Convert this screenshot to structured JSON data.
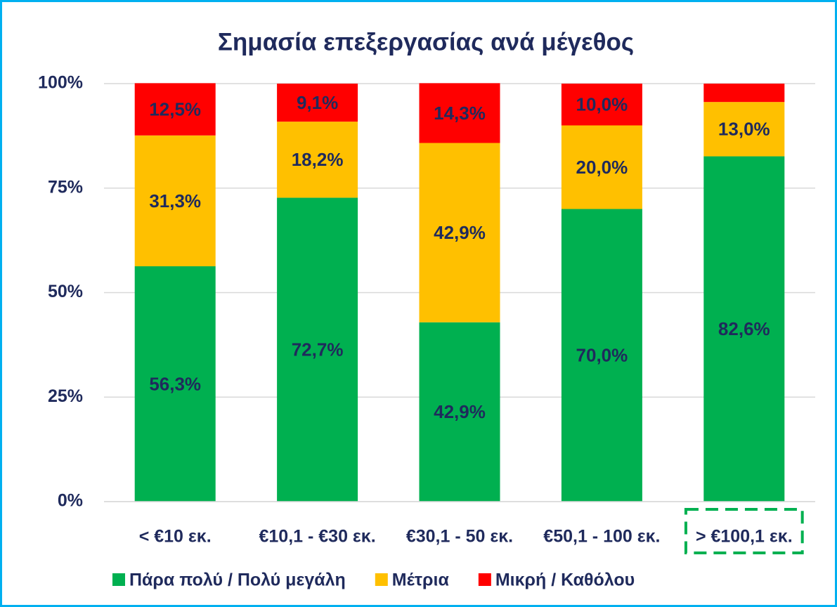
{
  "chart_data": {
    "type": "stacked_bar",
    "title": "Σημασία επεξεργασίας ανά μέγεθος",
    "categories": [
      "< €10 εκ.",
      "€10,1 - €30 εκ.",
      "€30,1 - 50 εκ.",
      "€50,1 - 100 εκ.",
      "> €100,1 εκ."
    ],
    "series": [
      {
        "name": "Πάρα πολύ / Πολύ μεγάλη",
        "color": "#00b050",
        "values": [
          56.3,
          72.7,
          42.9,
          70.0,
          82.6
        ],
        "value_labels": [
          "56,3%",
          "72,7%",
          "42,9%",
          "70,0%",
          "82,6%"
        ]
      },
      {
        "name": "Μέτρια",
        "color": "#ffc000",
        "values": [
          31.3,
          18.2,
          42.9,
          20.0,
          13.0
        ],
        "value_labels": [
          "31,3%",
          "18,2%",
          "42,9%",
          "20,0%",
          "13,0%"
        ]
      },
      {
        "name": "Μικρή / Καθόλου",
        "color": "#ff0000",
        "values": [
          12.5,
          9.1,
          14.3,
          10.0,
          4.4
        ],
        "value_labels": [
          "12,5%",
          "9,1%",
          "14,3%",
          "10,0%",
          null
        ]
      }
    ],
    "ylim": [
      0,
      100
    ],
    "yticks": [
      {
        "value": 0,
        "label": "0%"
      },
      {
        "value": 25,
        "label": "25%"
      },
      {
        "value": 50,
        "label": "50%"
      },
      {
        "value": 75,
        "label": "75%"
      },
      {
        "value": 100,
        "label": "100%"
      }
    ],
    "grid": true,
    "legend": "bottom"
  }
}
